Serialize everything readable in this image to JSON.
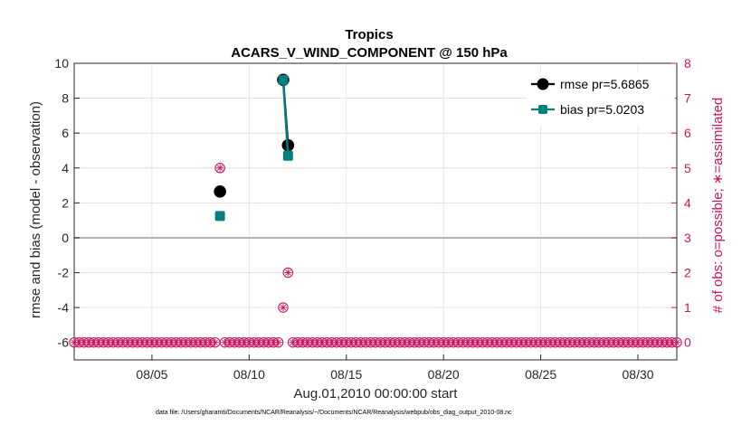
{
  "chart_data": {
    "type": "line",
    "title": "Tropics",
    "subtitle": "ACARS_V_WIND_COMPONENT @ 150 hPa",
    "xlabel": "Aug.01,2010 00:00:00 start",
    "ylabel": "rmse and bias (model - observation)",
    "ylabel_right": "# of obs: o=possible; ∗=assimilated",
    "footnote": "data file: /Users/gharamti/Documents/NCAR/Reanalysis/~/Documents/NCAR/Reanalysis/webpub/obs_diag_output_2010-08.nc",
    "x_ticks": [
      {
        "day": 5,
        "label": "08/05"
      },
      {
        "day": 10,
        "label": "08/10"
      },
      {
        "day": 15,
        "label": "08/15"
      },
      {
        "day": 20,
        "label": "08/20"
      },
      {
        "day": 25,
        "label": "08/25"
      },
      {
        "day": 30,
        "label": "08/30"
      }
    ],
    "xlim": [
      1,
      32
    ],
    "ylim": [
      -7,
      10
    ],
    "y_ticks": [
      10,
      8,
      6,
      4,
      2,
      0,
      -2,
      -4,
      -6
    ],
    "ylim_right": [
      -0.5,
      8
    ],
    "y_ticks_right": [
      8,
      7,
      6,
      5,
      4,
      3,
      2,
      1,
      0
    ],
    "grid": true,
    "legend_position": "top-right",
    "colors": {
      "rmse": "#000000",
      "bias": "#008080",
      "obs": "#c8155c",
      "zero_line": "#b4b4b4",
      "grid_left": "#e0e0e0",
      "grid_right": "#f6c6d6"
    },
    "series": [
      {
        "name": "rmse pr=5.6865",
        "key": "rmse",
        "marker": "circle",
        "points": [
          [
            8.5,
            2.65
          ],
          [
            11.75,
            9.05
          ],
          [
            12.0,
            5.3
          ]
        ],
        "segments": [
          [
            [
              11.75,
              9.05
            ],
            [
              12.0,
              5.3
            ]
          ]
        ]
      },
      {
        "name": "bias pr=5.0203",
        "key": "bias",
        "marker": "square",
        "points": [
          [
            8.5,
            1.25
          ],
          [
            11.75,
            9.05
          ],
          [
            12.0,
            4.7
          ]
        ],
        "segments": [
          [
            [
              11.75,
              9.05
            ],
            [
              12.0,
              4.7
            ]
          ]
        ]
      }
    ],
    "obs_possible": [
      [
        8.5,
        5
      ],
      [
        11.75,
        1
      ],
      [
        12.0,
        2
      ]
    ],
    "obs_assimilated": [
      [
        8.5,
        5
      ],
      [
        11.75,
        1
      ],
      [
        12.0,
        2
      ]
    ],
    "obs_zero_range": [
      1,
      32
    ],
    "obs_zero_step": 0.25
  }
}
